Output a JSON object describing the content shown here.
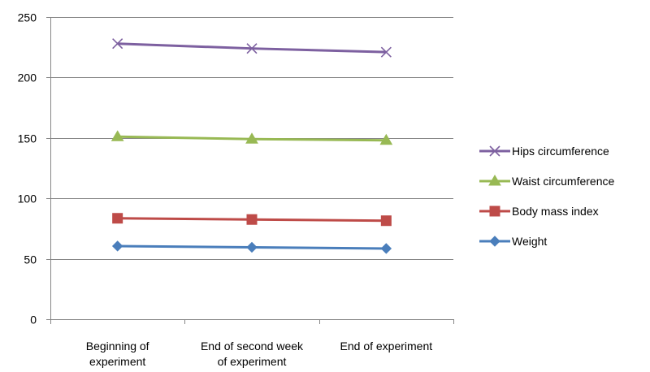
{
  "chart_data": {
    "type": "line",
    "title": "",
    "xlabel": "",
    "ylabel": "",
    "categories": [
      [
        "Beginning of",
        "experiment"
      ],
      [
        "End of second week",
        "of experiment"
      ],
      [
        "End of experiment"
      ]
    ],
    "ylim": [
      0,
      250
    ],
    "yticks": [
      0,
      50,
      100,
      150,
      200,
      250
    ],
    "grid": true,
    "legend_position": "right",
    "series": [
      {
        "name": "Weight",
        "values": [
          60.5,
          59.5,
          58.5
        ],
        "color": "#4a7ebb",
        "marker": "diamond"
      },
      {
        "name": "Body mass index",
        "values": [
          83.5,
          82.5,
          81.5
        ],
        "color": "#be4b48",
        "marker": "square"
      },
      {
        "name": "Waist circumference",
        "values": [
          151,
          149,
          148
        ],
        "color": "#98b954",
        "marker": "triangle"
      },
      {
        "name": "Hips circumference",
        "values": [
          228,
          224,
          221
        ],
        "color": "#7d60a0",
        "marker": "x"
      }
    ],
    "legend_order": [
      "Hips circumference",
      "Waist circumference",
      "Body mass index",
      "Weight"
    ]
  }
}
